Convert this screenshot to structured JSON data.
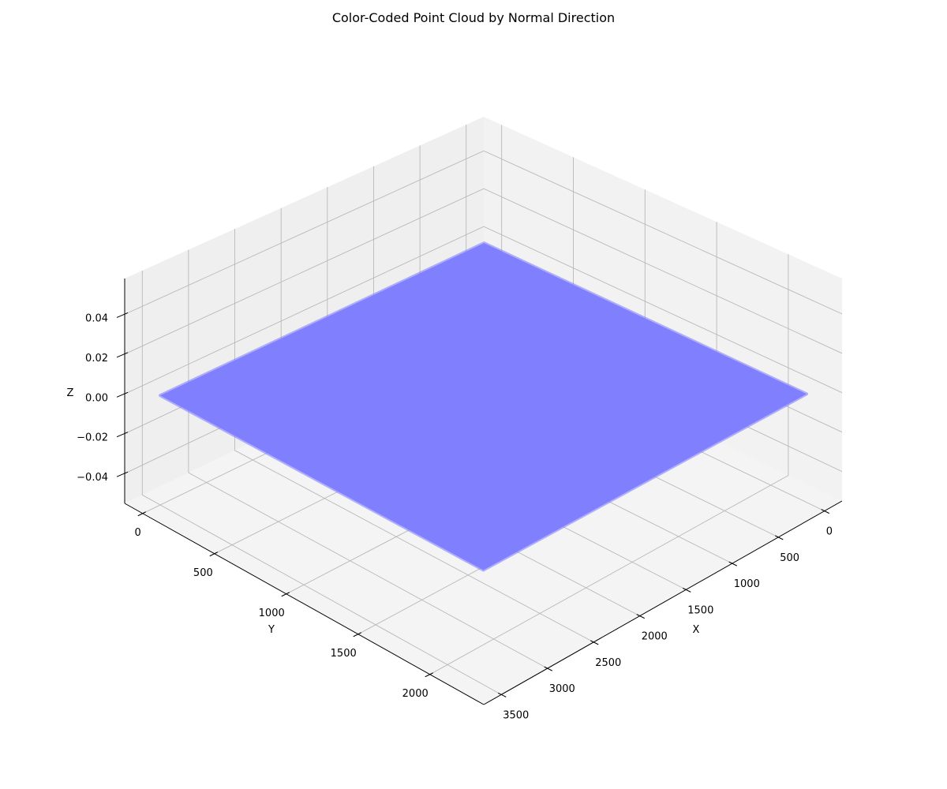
{
  "chart_data": {
    "type": "scatter3d",
    "title": "Color-Coded Point Cloud by Normal Direction",
    "xlabel": "X",
    "ylabel": "Y",
    "zlabel": "Z",
    "xlim": [
      -190,
      3690
    ],
    "ylim": [
      -125,
      2375
    ],
    "zlim": [
      -0.055,
      0.058
    ],
    "xticks": [
      0,
      500,
      1000,
      1500,
      2000,
      2500,
      3000,
      3500
    ],
    "yticks": [
      0,
      500,
      1000,
      1500,
      2000
    ],
    "zticks": [
      {
        "value": -0.04,
        "label": "−0.04"
      },
      {
        "value": -0.02,
        "label": "−0.02"
      },
      {
        "value": 0,
        "label": "0.00"
      },
      {
        "value": 0.02,
        "label": "0.02"
      },
      {
        "value": 0.04,
        "label": "0.04"
      }
    ],
    "grid": true,
    "series": [
      {
        "color": "#8080ff",
        "x": [
          0,
          3500,
          3500,
          0
        ],
        "y": [
          0,
          0,
          2250,
          2250
        ],
        "z": [
          0,
          0,
          0,
          0
        ]
      }
    ]
  }
}
